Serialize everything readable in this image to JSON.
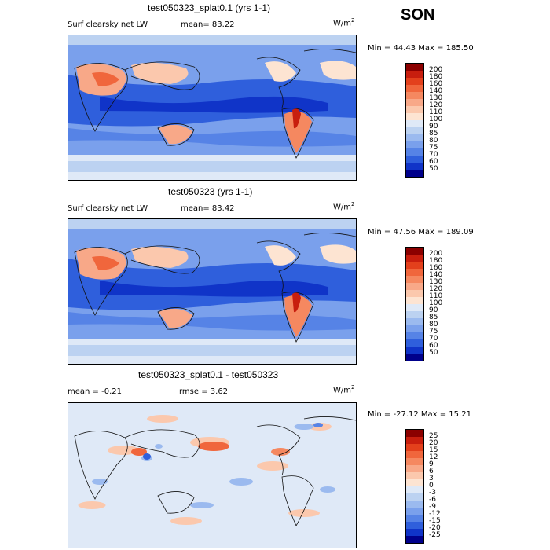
{
  "season": "SON",
  "units_base": "W/m",
  "units_exp": "2",
  "panels": [
    {
      "title": "test050323_splat0.1 (yrs 1-1)",
      "left_label": "Surf clearsky net LW",
      "stat1": "mean=  83.22",
      "stat2": "",
      "minmax": "Min =  44.43 Max = 185.50",
      "colorbar": {
        "levels": [
          "200",
          "180",
          "160",
          "140",
          "130",
          "120",
          "110",
          "100",
          "90",
          "85",
          "80",
          "75",
          "70",
          "60",
          "50"
        ],
        "colors": [
          "#8b0000",
          "#c81e0e",
          "#e3401c",
          "#f0663c",
          "#f58860",
          "#f8a888",
          "#fbc8ad",
          "#fde4d2",
          "#dfe9f7",
          "#bcd2f1",
          "#9bbaef",
          "#7aa0ec",
          "#5683e6",
          "#2f5fdc",
          "#1034c8",
          "#00008b"
        ]
      },
      "map_palette": "abs"
    },
    {
      "title": "test050323 (yrs 1-1)",
      "left_label": "Surf clearsky net LW",
      "stat1": "mean=  83.42",
      "stat2": "",
      "minmax": "Min =  47.56 Max = 189.09",
      "colorbar": {
        "levels": [
          "200",
          "180",
          "160",
          "140",
          "130",
          "120",
          "110",
          "100",
          "90",
          "85",
          "80",
          "75",
          "70",
          "60",
          "50"
        ],
        "colors": [
          "#8b0000",
          "#c81e0e",
          "#e3401c",
          "#f0663c",
          "#f58860",
          "#f8a888",
          "#fbc8ad",
          "#fde4d2",
          "#dfe9f7",
          "#bcd2f1",
          "#9bbaef",
          "#7aa0ec",
          "#5683e6",
          "#2f5fdc",
          "#1034c8",
          "#00008b"
        ]
      },
      "map_palette": "abs"
    },
    {
      "title": "test050323_splat0.1 - test050323",
      "left_label": "mean =  -0.21",
      "stat1": "rmse =   3.62",
      "stat2": "",
      "minmax": "Min = -27.12 Max =  15.21",
      "colorbar": {
        "levels": [
          "25",
          "20",
          "15",
          "12",
          "9",
          "6",
          "3",
          "0",
          "-3",
          "-6",
          "-9",
          "-12",
          "-15",
          "-20",
          "-25"
        ],
        "colors": [
          "#8b0000",
          "#c81e0e",
          "#e3401c",
          "#f0663c",
          "#f58860",
          "#f8a888",
          "#fbc8ad",
          "#fde4d2",
          "#dfe9f7",
          "#bcd2f1",
          "#9bbaef",
          "#7aa0ec",
          "#5683e6",
          "#2f5fdc",
          "#1034c8",
          "#00008b"
        ]
      },
      "map_palette": "diff"
    }
  ]
}
